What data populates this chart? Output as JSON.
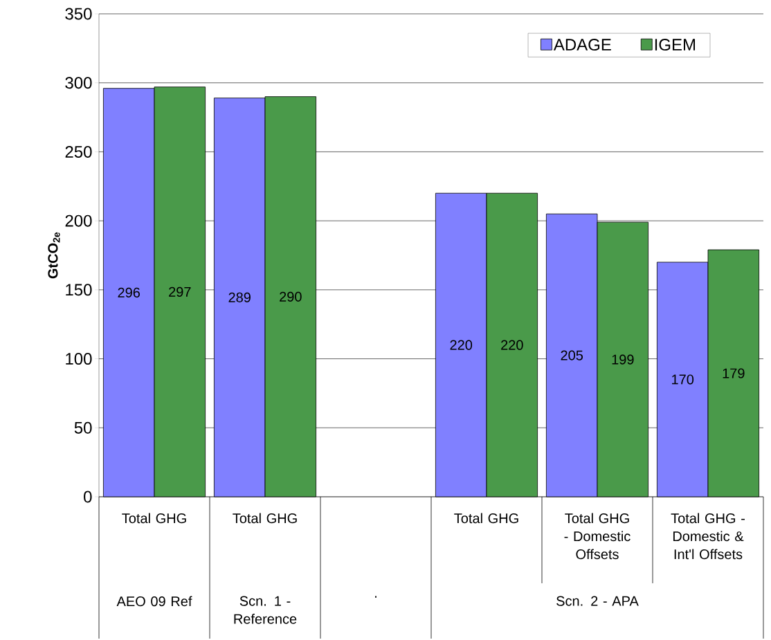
{
  "chart_data": {
    "type": "bar",
    "ylabel": "GtCO$_{2e}$",
    "categories": [
      "Total GHG",
      "Total GHG",
      null,
      "Total GHG",
      "Total GHG - Domestic Offsets",
      "Total GHG - Domestic & Int'l Offsets"
    ],
    "series": [
      {
        "name": "ADAGE",
        "color": "#8080ff",
        "values": [
          296,
          289,
          null,
          220,
          205,
          170
        ],
        "value_labels": [
          "296",
          "289",
          null,
          "220",
          "205",
          "170"
        ]
      },
      {
        "name": "IGEM",
        "color": "#4a9a4a",
        "values": [
          297,
          290,
          null,
          220,
          199,
          179
        ],
        "value_labels": [
          "297",
          "290",
          null,
          "220",
          "199",
          "179"
        ]
      }
    ],
    "annotations": [
      "AEO 09 Ref",
      "Scn. 1 - Reference",
      ".",
      "Scn. 2 - APA"
    ],
    "ylim": [
      0,
      350
    ],
    "yticks": [
      0,
      50,
      100,
      150,
      200,
      250,
      300,
      350
    ],
    "grid": "y",
    "legend": "top right"
  }
}
